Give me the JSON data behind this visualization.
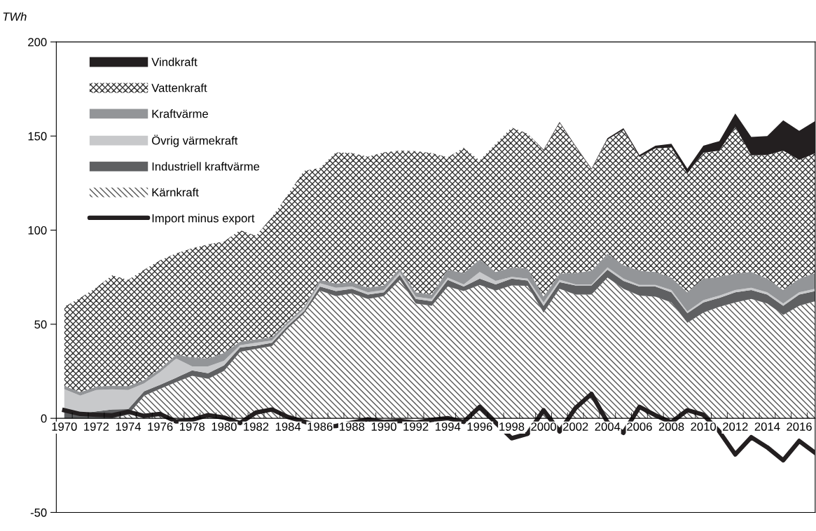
{
  "chart_data": {
    "type": "area",
    "stacked": true,
    "ylabel": "TWh",
    "legend": "top left",
    "x": [
      1970,
      1971,
      1972,
      1973,
      1974,
      1975,
      1976,
      1977,
      1978,
      1979,
      1980,
      1981,
      1982,
      1983,
      1984,
      1985,
      1986,
      1987,
      1988,
      1989,
      1990,
      1991,
      1992,
      1993,
      1994,
      1995,
      1996,
      1997,
      1998,
      1999,
      2000,
      2001,
      2002,
      2003,
      2004,
      2005,
      2006,
      2007,
      2008,
      2009,
      2010,
      2011,
      2012,
      2013,
      2014,
      2015,
      2016,
      2017
    ],
    "xlim": [
      1969.5,
      2017
    ],
    "ylim": [
      -50,
      200
    ],
    "yticks": [
      -50,
      0,
      50,
      100,
      150,
      200
    ],
    "xticks": [
      1970,
      1972,
      1974,
      1976,
      1978,
      1980,
      1982,
      1984,
      1986,
      1988,
      1990,
      1992,
      1994,
      1996,
      1998,
      2000,
      2002,
      2004,
      2006,
      2008,
      2010,
      2012,
      2014,
      2016,
      {
        "value": 1970.5,
        "label": null
      },
      {
        "value": 1971.5,
        "label": null
      },
      {
        "value": 1972.5,
        "label": null
      },
      {
        "value": 1973.5,
        "label": null
      },
      {
        "value": 1974.5,
        "label": null
      },
      {
        "value": 1975.5,
        "label": null
      },
      {
        "value": 1976.5,
        "label": null
      },
      {
        "value": 1977.5,
        "label": null
      },
      {
        "value": 1978.5,
        "label": null
      },
      {
        "value": 1979.5,
        "label": null
      },
      {
        "value": 1980.5,
        "label": null
      },
      {
        "value": 1981.5,
        "label": null
      },
      {
        "value": 1982.5,
        "label": null
      },
      {
        "value": 1983.5,
        "label": null
      },
      {
        "value": 1984.5,
        "label": null
      },
      {
        "value": 1985.5,
        "label": null
      },
      {
        "value": 1986.5,
        "label": null
      },
      {
        "value": 1987.5,
        "label": null
      },
      {
        "value": 1988.5,
        "label": null
      },
      {
        "value": 1989.5,
        "label": null
      },
      {
        "value": 1990.5,
        "label": null
      },
      {
        "value": 1991.5,
        "label": null
      },
      {
        "value": 1992.5,
        "label": null
      },
      {
        "value": 1993.5,
        "label": null
      },
      {
        "value": 1994.5,
        "label": null
      },
      {
        "value": 1995.5,
        "label": null
      },
      {
        "value": 1996.5,
        "label": null
      },
      {
        "value": 1997.5,
        "label": null
      },
      {
        "value": 1998.5,
        "label": null
      },
      {
        "value": 1999.5,
        "label": null
      },
      {
        "value": 2000.5,
        "label": null
      },
      {
        "value": 2001.5,
        "label": null
      },
      {
        "value": 2002.5,
        "label": null
      },
      {
        "value": 2003.5,
        "label": null
      },
      {
        "value": 2004.5,
        "label": null
      },
      {
        "value": 2005.5,
        "label": null
      },
      {
        "value": 2006.5,
        "label": null
      },
      {
        "value": 2007.5,
        "label": null
      },
      {
        "value": 2008.5,
        "label": null
      },
      {
        "value": 2009.5,
        "label": null
      },
      {
        "value": 2010.5,
        "label": null
      },
      {
        "value": 2011.5,
        "label": null
      },
      {
        "value": 2012.5,
        "label": null
      },
      {
        "value": 2013.5,
        "label": null
      },
      {
        "value": 2014.5,
        "label": null
      },
      {
        "value": 2015.5,
        "label": null
      },
      {
        "value": 2016.5,
        "label": null
      }
    ],
    "series": [
      {
        "name": "Kärnkraft",
        "color": "#555555",
        "values": [
          0,
          0,
          0,
          0,
          1.9,
          12,
          15.7,
          19.2,
          22.6,
          21,
          25.2,
          35.3,
          36.9,
          38.4,
          47.9,
          55.7,
          67.9,
          64.9,
          66.4,
          63.4,
          64.9,
          73.6,
          61,
          59.8,
          70,
          67.6,
          70.9,
          67.9,
          70.6,
          70.4,
          56.2,
          68.8,
          65.8,
          65.8,
          74.8,
          68.8,
          65.2,
          64.6,
          61.6,
          50.8,
          56.2,
          59.2,
          61.6,
          63.4,
          61,
          55,
          59.8,
          62.2
        ]
      },
      {
        "name": "Industriell kraftvärme",
        "color": "#5f6062",
        "values": [
          4.5,
          2.5,
          3.7,
          4.7,
          3.0,
          2.4,
          2.1,
          2.4,
          2.9,
          3,
          3,
          2.4,
          1.7,
          1.8,
          1.4,
          1.2,
          2.1,
          2.7,
          2.4,
          2.4,
          2.1,
          2.7,
          2.4,
          2.4,
          3.6,
          2.4,
          3.3,
          3.3,
          3.6,
          2.8,
          3.6,
          3.6,
          4.8,
          4.8,
          4.2,
          4.2,
          4.8,
          5.4,
          5.4,
          5.1,
          5.4,
          4.8,
          5.4,
          4.8,
          4.8,
          4.8,
          6.0,
          5.4
        ]
      },
      {
        "name": "Övrig värmekraft",
        "color": "#c8c9cb",
        "values": [
          11.0,
          9.6,
          11.3,
          10.7,
          10.1,
          4.2,
          6.8,
          10.2,
          2.1,
          3.6,
          2.4,
          1.2,
          1.6,
          1.2,
          1.0,
          1.1,
          1.8,
          1.8,
          1.2,
          1.2,
          1.2,
          1.5,
          1.2,
          1.2,
          1.2,
          1.2,
          3.6,
          1.8,
          1.0,
          1.0,
          1.8,
          1.2,
          0.6,
          0.6,
          1.2,
          1.2,
          0.9,
          0.9,
          1.2,
          0.9,
          1.2,
          1.2,
          1.2,
          1.2,
          1.2,
          1.2,
          1.2,
          1.2
        ]
      },
      {
        "name": "Kraftvärme",
        "color": "#939598",
        "values": [
          1.8,
          1.8,
          1.8,
          2.0,
          2.1,
          1.8,
          1.8,
          2.0,
          4.8,
          4.2,
          4.2,
          1.8,
          1.7,
          1.7,
          1.2,
          1.2,
          1.8,
          2.2,
          2.4,
          2.4,
          2.4,
          1.8,
          2.4,
          2.4,
          4.2,
          6.0,
          6.6,
          4.8,
          5.0,
          5.4,
          3.0,
          3.3,
          6.0,
          7.2,
          7.2,
          7.2,
          7.5,
          6.9,
          6.6,
          10.2,
          11.4,
          10.0,
          8.7,
          8.4,
          7.2,
          7.2,
          7.2,
          8.4
        ]
      },
      {
        "name": "Vattenkraft",
        "color": "#333333",
        "values": [
          41.9,
          50.1,
          52.7,
          58.6,
          56.5,
          58.6,
          57.6,
          53.8,
          57.9,
          60.7,
          59.2,
          59.3,
          55.1,
          63.9,
          67.5,
          72.3,
          59.4,
          69.7,
          68.6,
          69.6,
          70.7,
          62.7,
          75,
          75.2,
          59.7,
          66.5,
          52.6,
          68.1,
          74.3,
          71.7,
          77.7,
          80.2,
          67.1,
          53.8,
          60.7,
          71.9,
          60.5,
          65.7,
          69.1,
          63.2,
          66.9,
          67.1,
          77.9,
          61.9,
          65.7,
          74.1,
          63.1,
          63.7
        ]
      },
      {
        "name": "Vindkraft",
        "color": "#231f20",
        "values": [
          0,
          0,
          0,
          0,
          0,
          0,
          0,
          0,
          0,
          0,
          0,
          0,
          0,
          0,
          0,
          0,
          0,
          0,
          0,
          0,
          0,
          0,
          0,
          0,
          0,
          0,
          0,
          0,
          0,
          0,
          0.4,
          0.4,
          0.5,
          0.5,
          0.8,
          0.9,
          1.0,
          1.4,
          2.0,
          2.5,
          3.8,
          5.0,
          7.2,
          9.8,
          10.1,
          16.1,
          15.5,
          17.1
        ]
      },
      {
        "name": "Import minus export",
        "type": "line",
        "color": "#231f20",
        "line_style": "solid",
        "values": [
          4.3,
          2.3,
          1.9,
          1.6,
          3.5,
          1.3,
          2.3,
          -1.7,
          -0.8,
          1.7,
          0.4,
          -2.5,
          3.1,
          4.7,
          0.7,
          -1.7,
          -4.4,
          -4.1,
          -2.3,
          -0.5,
          -1.9,
          -1.4,
          -2.3,
          -0.8,
          0.1,
          -1.9,
          6.1,
          -2.3,
          -10.6,
          -8.2,
          4.3,
          -7.0,
          5.5,
          13,
          -2.1,
          -7.7,
          6.1,
          1.6,
          -2.1,
          4.3,
          1.9,
          -7.0,
          -19.2,
          -10,
          -15.4,
          -22.3,
          -12,
          -18.4
        ]
      }
    ]
  }
}
